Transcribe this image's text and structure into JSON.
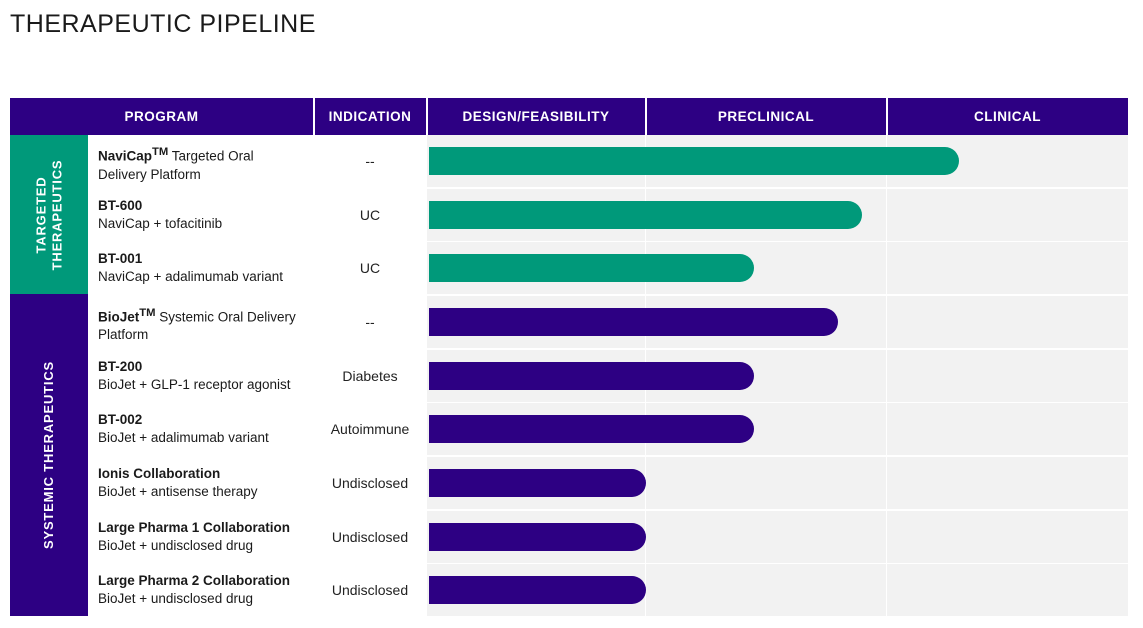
{
  "title": "THERAPEUTIC PIPELINE",
  "colors": {
    "header": "#2d0083",
    "targeted": "#00997a",
    "systemic": "#2d0083",
    "cell_bg": "#f2f2f2"
  },
  "headers": {
    "program": "PROGRAM",
    "indication": "INDICATION",
    "design": "DESIGN/FEASIBILITY",
    "preclinical": "PRECLINICAL",
    "clinical": "CLINICAL"
  },
  "groups": [
    {
      "line1": "TARGETED",
      "line2": "THERAPEUTICS"
    },
    {
      "line1": "SYSTEMIC THERAPEUTICS",
      "line2": ""
    }
  ],
  "chart_data": {
    "type": "bar",
    "orientation": "horizontal",
    "title": "THERAPEUTIC PIPELINE",
    "stages": [
      "DESIGN/FEASIBILITY",
      "PRECLINICAL",
      "CLINICAL"
    ],
    "xlim": [
      0,
      3
    ],
    "programs": [
      {
        "name": "NaviCap",
        "tm": "TM",
        "desc_inline": " Targeted Oral",
        "desc": "Delivery Platform",
        "indication": "--",
        "group": "targeted",
        "progress": 2.3
      },
      {
        "name": "BT-600",
        "tm": "",
        "desc_inline": "",
        "desc": "NaviCap + tofacitinib",
        "indication": "UC",
        "group": "targeted",
        "progress": 1.9
      },
      {
        "name": "BT-001",
        "tm": "",
        "desc_inline": "",
        "desc": "NaviCap + adalimumab variant",
        "indication": "UC",
        "group": "targeted",
        "progress": 1.45
      },
      {
        "name": "BioJet",
        "tm": "TM",
        "desc_inline": " Systemic Oral Delivery",
        "desc": "Platform",
        "indication": "--",
        "group": "systemic",
        "progress": 1.8
      },
      {
        "name": "BT-200",
        "tm": "",
        "desc_inline": "",
        "desc": "BioJet + GLP-1 receptor agonist",
        "indication": "Diabetes",
        "group": "systemic",
        "progress": 1.45
      },
      {
        "name": "BT-002",
        "tm": "",
        "desc_inline": "",
        "desc": "BioJet + adalimumab variant",
        "indication": "Autoimmune",
        "group": "systemic",
        "progress": 1.45
      },
      {
        "name": "Ionis Collaboration",
        "tm": "",
        "desc_inline": "",
        "desc": "BioJet + antisense therapy",
        "indication": "Undisclosed",
        "group": "systemic",
        "progress": 1.0
      },
      {
        "name": "Large Pharma 1 Collaboration",
        "tm": "",
        "desc_inline": "",
        "desc": "BioJet + undisclosed drug",
        "indication": "Undisclosed",
        "group": "systemic",
        "progress": 1.0
      },
      {
        "name": "Large Pharma 2 Collaboration",
        "tm": "",
        "desc_inline": "",
        "desc": "BioJet + undisclosed drug",
        "indication": "Undisclosed",
        "group": "systemic",
        "progress": 1.0
      }
    ]
  }
}
